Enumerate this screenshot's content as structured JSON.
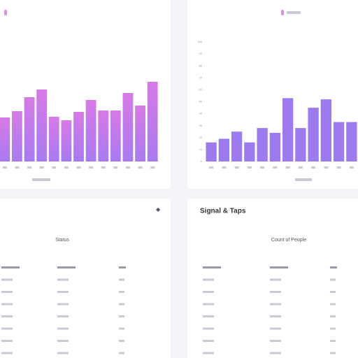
{
  "chart_data": [
    {
      "type": "bar",
      "color": "#a87af0",
      "color_top": "#d77ae6",
      "values": [
        63,
        72,
        92,
        103,
        64,
        59,
        71,
        88,
        73,
        73,
        98,
        80,
        114
      ],
      "ylim": [
        0,
        120
      ]
    },
    {
      "type": "bar",
      "color": "#9d7aee",
      "color_top": "#9d7aee",
      "values": [
        16,
        19,
        25,
        16,
        28,
        24,
        53,
        28,
        45,
        52,
        33,
        33
      ],
      "ylim": [
        0,
        100
      ],
      "yticks": [
        0,
        10,
        20,
        30,
        40,
        50,
        60,
        70,
        80,
        90,
        100
      ]
    }
  ],
  "tables": [
    {
      "header": "Status"
    },
    {
      "title": "Signal & Taps",
      "header": "Count of People"
    }
  ]
}
